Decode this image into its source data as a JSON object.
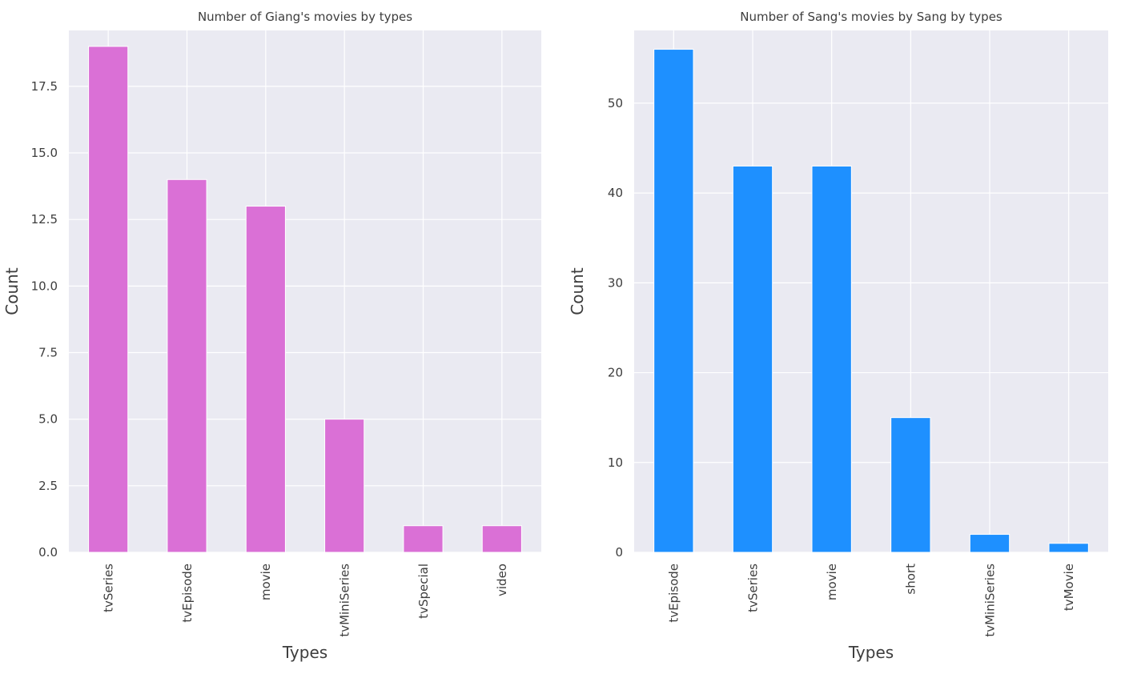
{
  "chart_data": [
    {
      "type": "bar",
      "title": "Number of Giang's movies by types",
      "xlabel": "Types",
      "ylabel": "Count",
      "categories": [
        "tvSeries",
        "tvEpisode",
        "movie",
        "tvMiniSeries",
        "tvSpecial",
        "video"
      ],
      "values": [
        19,
        14,
        13,
        5,
        1,
        1
      ],
      "ylim": [
        0,
        19.6
      ],
      "yticks": [
        0.0,
        2.5,
        5.0,
        7.5,
        10.0,
        12.5,
        15.0,
        17.5
      ],
      "ytick_labels": [
        "0.0",
        "2.5",
        "5.0",
        "7.5",
        "10.0",
        "12.5",
        "15.0",
        "17.5"
      ],
      "grid": true,
      "bar_color": "#da70d6",
      "background_color": "#eaeaf2"
    },
    {
      "type": "bar",
      "title": "Number of Sang's movies by Sang by types",
      "xlabel": "Types",
      "ylabel": "Count",
      "categories": [
        "tvEpisode",
        "tvSeries",
        "movie",
        "short",
        "tvMiniSeries",
        "tvMovie"
      ],
      "values": [
        56,
        43,
        43,
        15,
        2,
        1
      ],
      "ylim": [
        0,
        58.1
      ],
      "yticks": [
        0,
        10,
        20,
        30,
        40,
        50
      ],
      "ytick_labels": [
        "0",
        "10",
        "20",
        "30",
        "40",
        "50"
      ],
      "grid": true,
      "bar_color": "#1e90ff",
      "background_color": "#eaeaf2"
    }
  ]
}
